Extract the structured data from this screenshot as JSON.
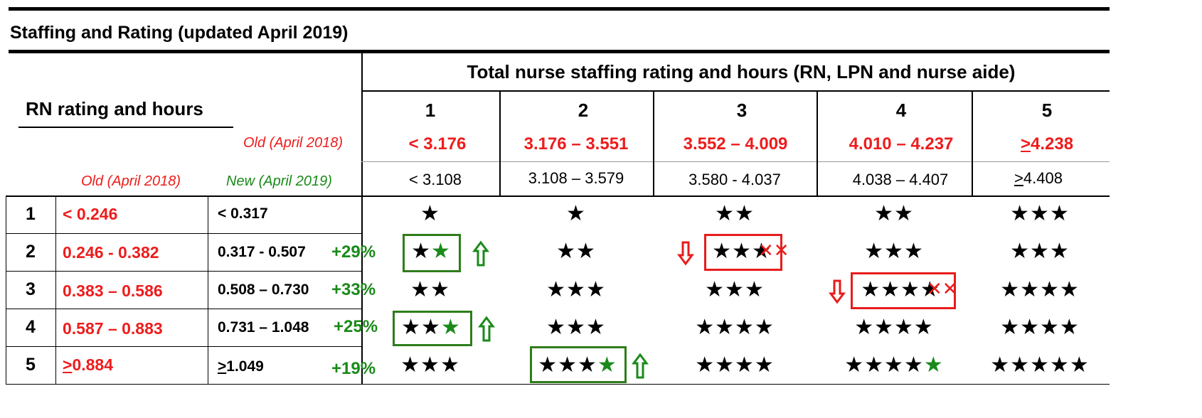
{
  "title": "Staffing and Rating (updated April 2019)",
  "total_header": "Total nurse staffing rating and hours (RN, LPN and nurse aide)",
  "rn_header": "RN rating and hours",
  "labels": {
    "old": "Old (April 2018)",
    "old_left": "Old (April 2018)",
    "new": "New (April 2019)"
  },
  "columns": [
    {
      "rating": "1",
      "old": "< 3.176",
      "new": "< 3.108"
    },
    {
      "rating": "2",
      "old": "3.176 – 3.551",
      "new": "3.108 – 3.579"
    },
    {
      "rating": "3",
      "old": "3.552 – 4.009",
      "new": "3.580 - 4.037"
    },
    {
      "rating": "4",
      "old": "4.010 – 4.237",
      "new": "4.038 – 4.407"
    },
    {
      "rating": "5",
      "old_prefix": ">",
      "old": "4.238",
      "new_prefix": ">",
      "new": "4.408"
    }
  ],
  "rows": [
    {
      "rating": "1",
      "old": "< 0.246",
      "new": "< 0.317",
      "change": ""
    },
    {
      "rating": "2",
      "old": "0.246 - 0.382",
      "new": "0.317 - 0.507",
      "change": "+29%"
    },
    {
      "rating": "3",
      "old": "0.383 – 0.586",
      "new": "0.508 – 0.730",
      "change": "+33%"
    },
    {
      "rating": "4",
      "old": "0.587 – 0.883",
      "new": "0.731 – 1.048",
      "change": "+25%"
    },
    {
      "rating": "5",
      "old_prefix": ">",
      "old": "0.884",
      "new_prefix": ">",
      "new": "1.049",
      "change": "+19%"
    }
  ],
  "stars": [
    [
      {
        "black": "★",
        "green": ""
      },
      {
        "black": "★",
        "green": ""
      },
      {
        "black": "★★",
        "green": ""
      },
      {
        "black": "★★",
        "green": ""
      },
      {
        "black": "★★★",
        "green": ""
      }
    ],
    [
      {
        "black": "★",
        "green": "★"
      },
      {
        "black": "★★",
        "green": ""
      },
      {
        "black": "★★★",
        "green": ""
      },
      {
        "black": "★★★",
        "green": ""
      },
      {
        "black": "★★★",
        "green": ""
      }
    ],
    [
      {
        "black": "★★",
        "green": ""
      },
      {
        "black": "★★★",
        "green": ""
      },
      {
        "black": "★★★",
        "green": ""
      },
      {
        "black": "★★★★",
        "green": ""
      },
      {
        "black": "★★★★",
        "green": ""
      }
    ],
    [
      {
        "black": "★★",
        "green": "★"
      },
      {
        "black": "★★★",
        "green": ""
      },
      {
        "black": "★★★★",
        "green": ""
      },
      {
        "black": "★★★★",
        "green": ""
      },
      {
        "black": "★★★★",
        "green": ""
      }
    ],
    [
      {
        "black": "★★★",
        "green": ""
      },
      {
        "black": "★★★",
        "green": "★"
      },
      {
        "black": "★★★★",
        "green": ""
      },
      {
        "black": "★★★★",
        "green": "★"
      },
      {
        "black": "★★★★★",
        "green": ""
      }
    ]
  ],
  "colors": {
    "red": "#ee1c1c",
    "green": "#1a8a1a",
    "black": "#000000"
  },
  "icons": {
    "up_arrow": "up-arrow-icon",
    "down_arrow": "down-arrow-icon",
    "cross": "red-x-mark"
  }
}
